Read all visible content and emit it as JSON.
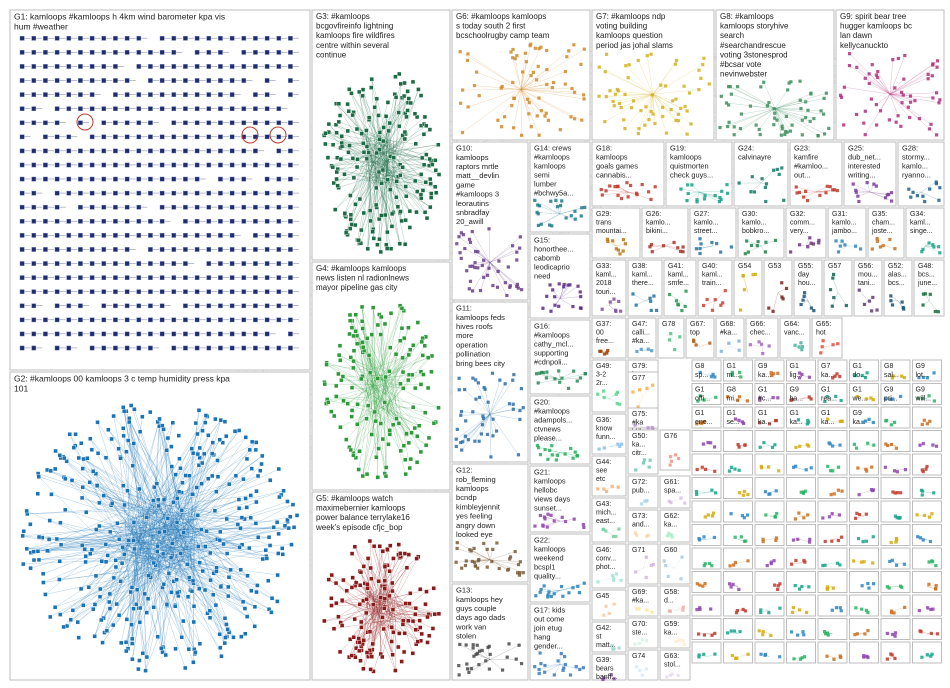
{
  "groups": [
    {
      "id": "G1",
      "lines": [
        "G1: kamloops #kamloops h 4km wind barometer kpa vis",
        "hum #weather"
      ],
      "color": "#1f2d6b",
      "style": "grid"
    },
    {
      "id": "G2",
      "lines": [
        "G2: #kamloops 00 kamloops 3 c temp humidity press kpa",
        "101"
      ],
      "color": "#1a73b5",
      "style": "blob"
    },
    {
      "id": "G3",
      "lines": [
        "G3: #kamloops",
        "bcgovfireinfo lightning",
        "kamloops fire wildfires",
        "centre within several",
        "continue"
      ],
      "color": "#1d6b45",
      "style": "blob"
    },
    {
      "id": "G4",
      "lines": [
        "G4: #kamloops kamloops",
        "news listen nl radionlnews",
        "mayor pipeline gas city"
      ],
      "color": "#2e9b3a",
      "style": "blob"
    },
    {
      "id": "G5",
      "lines": [
        "G5: #kamloops watch",
        "maximebernier kamloops",
        "power balance terrylake16",
        "week's episode cfjc_bop"
      ],
      "color": "#8b1a1a",
      "style": "blob"
    },
    {
      "id": "G6",
      "lines": [
        "G6: #kamloops kamloops",
        "s today south 2 first",
        "bcschoolrugby camp team"
      ],
      "color": "#d08a2a",
      "style": "scatter"
    },
    {
      "id": "G7",
      "lines": [
        "G7: #kamloops ndp",
        "voting building",
        "kamloops question",
        "period jas johal slams"
      ],
      "color": "#d4b21f",
      "style": "scatter"
    },
    {
      "id": "G8",
      "lines": [
        "G8: #kamloops",
        "kamloops storyhive",
        "search",
        "#searchandrescue",
        "voting 3stonesprod",
        "#bcsar vote",
        "nevinwebster"
      ],
      "color": "#3f8f5f",
      "style": "scatter"
    },
    {
      "id": "G9",
      "lines": [
        "G9: spirit bear tree",
        "hugger kamloops bc",
        "lan dawn",
        "kellycanuckto"
      ],
      "color": "#b0307a",
      "style": "scatter"
    },
    {
      "id": "G10",
      "lines": [
        "G10:",
        "kamloops",
        "raptors mrtle",
        "matt__devlin",
        "game",
        "#kamloops 3",
        "leorautins",
        "snbradfay",
        "20_awill"
      ],
      "color": "#6a3d8a",
      "style": "scatter"
    },
    {
      "id": "G11",
      "lines": [
        "G11:",
        "kamloops feds",
        "hives roofs",
        "more",
        "operation",
        "pollination",
        "bring bees city"
      ],
      "color": "#2b6fa8",
      "style": "scatter"
    },
    {
      "id": "G12",
      "lines": [
        "G12:",
        "rob_fleming",
        "kamloops",
        "bcndp",
        "kimbleyjennit",
        "yes feeling",
        "angry down",
        "looked eye"
      ],
      "color": "#7a5a3a",
      "style": "scatter"
    },
    {
      "id": "G13",
      "lines": [
        "G13:",
        "kamloops hey",
        "guys couple",
        "days ago dads",
        "work van",
        "stolen"
      ],
      "color": "#4a4a4a",
      "style": "scatter"
    },
    {
      "id": "G14",
      "lines": [
        "G14: crews",
        "#kamloops",
        "kamloops",
        "semi",
        "lumber",
        "#bchwy5a..."
      ],
      "color": "#1f7a8c",
      "style": "scatter"
    },
    {
      "id": "G15",
      "lines": [
        "G15:",
        "honorthee...",
        "cabomb",
        "leodicaprio",
        "need"
      ],
      "color": "#5b2a86",
      "style": "scatter"
    },
    {
      "id": "G16",
      "lines": [
        "G16:",
        "#kamloops",
        "cathy_mcl...",
        "supporting",
        "#cdnpoli..."
      ],
      "color": "#2a8a5a",
      "style": "scatter"
    },
    {
      "id": "G17",
      "lines": [
        "G17: kids",
        "out come",
        "join etug",
        "hang",
        "gender..."
      ],
      "color": "#3a7ab8",
      "style": "scatter"
    },
    {
      "id": "G18",
      "lines": [
        "G18:",
        "kamloops",
        "goals games",
        "cannabis..."
      ],
      "color": "#c0392b",
      "style": "scatter"
    },
    {
      "id": "G19",
      "lines": [
        "G19:",
        "kamloops",
        "quistmorten",
        "check guys..."
      ],
      "color": "#16a085",
      "style": "scatter"
    },
    {
      "id": "G20",
      "lines": [
        "G20:",
        "#kamloops",
        "adampols...",
        "ctvnews",
        "please..."
      ],
      "color": "#27ae60",
      "style": "scatter"
    },
    {
      "id": "G21",
      "lines": [
        "G21:",
        "kamloops",
        "hellobc",
        "views days",
        "sunset..."
      ],
      "color": "#8e44ad",
      "style": "scatter"
    },
    {
      "id": "G22",
      "lines": [
        "G22:",
        "kamloops",
        "weekend",
        "bcspl1",
        "quality..."
      ],
      "color": "#2980b9",
      "style": "scatter"
    },
    {
      "id": "G23",
      "lines": [
        "G23:",
        "kamfire",
        "#kamloo...",
        "out..."
      ],
      "color": "#c0392b",
      "style": "scatter"
    },
    {
      "id": "G24",
      "lines": [
        "G24:",
        "calvinayre"
      ],
      "color": "#117a65",
      "style": "scatter"
    },
    {
      "id": "G25",
      "lines": [
        "G25:",
        "dub_net...",
        "interested",
        "writing..."
      ],
      "color": "#7d3c98",
      "style": "scatter"
    },
    {
      "id": "G28",
      "lines": [
        "G28:",
        "stormy...",
        "kamlo...",
        "ryanno..."
      ],
      "color": "#1f618d",
      "style": "scatter"
    },
    {
      "id": "G29",
      "lines": [
        "G29:",
        "trans",
        "mountai..."
      ],
      "color": "#b9770e",
      "style": "scatter"
    },
    {
      "id": "G26",
      "lines": [
        "G26:",
        "kamlo...",
        "bikini..."
      ],
      "color": "#a93226",
      "style": "scatter"
    },
    {
      "id": "G27",
      "lines": [
        "G27:",
        "kamlo...",
        "street..."
      ],
      "color": "#2874a6",
      "style": "scatter"
    },
    {
      "id": "G30",
      "lines": [
        "G30:",
        "kamlo...",
        "bobkro..."
      ],
      "color": "#1e8449",
      "style": "scatter"
    },
    {
      "id": "G32",
      "lines": [
        "G32:",
        "comm...",
        "very..."
      ],
      "color": "#6c3483",
      "style": "scatter"
    },
    {
      "id": "G31",
      "lines": [
        "G31:",
        "kamlo...",
        "jambo..."
      ],
      "color": "#2e86c1",
      "style": "scatter"
    },
    {
      "id": "G35",
      "lines": [
        "G35:",
        "cham...",
        "joste..."
      ],
      "color": "#ca6f1e",
      "style": "scatter"
    },
    {
      "id": "G34",
      "lines": [
        "G34:",
        "kaml...",
        "singe..."
      ],
      "color": "#17a589",
      "style": "scatter"
    },
    {
      "id": "G33",
      "lines": [
        "G33:",
        "kaml...",
        "2018",
        "touri..."
      ],
      "color": "#884ea0",
      "style": "scatter"
    },
    {
      "id": "G38",
      "lines": [
        "G38:",
        "kaml...",
        "there..."
      ],
      "color": "#2471a3",
      "style": "scatter"
    },
    {
      "id": "G41",
      "lines": [
        "G41:",
        "kaml...",
        "smfe..."
      ],
      "color": "#229954",
      "style": "scatter"
    },
    {
      "id": "G40",
      "lines": [
        "G40:",
        "kaml...",
        "train..."
      ],
      "color": "#cb4335",
      "style": "scatter"
    },
    {
      "id": "G54",
      "lines": [
        "G54"
      ],
      "color": "#d4ac0d",
      "style": "scatter"
    },
    {
      "id": "G53",
      "lines": [
        "G53"
      ],
      "color": "#7b241c",
      "style": "scatter"
    },
    {
      "id": "G55",
      "lines": [
        "G55:",
        "day",
        "hou..."
      ],
      "color": "#1a5276",
      "style": "scatter"
    },
    {
      "id": "G57",
      "lines": [
        "G57"
      ],
      "color": "#0e6655",
      "style": "scatter"
    },
    {
      "id": "G56",
      "lines": [
        "G56:",
        "mou...",
        "tani..."
      ],
      "color": "#633974",
      "style": "scatter"
    },
    {
      "id": "G52",
      "lines": [
        "G52:",
        "alas...",
        "bcs..."
      ],
      "color": "#1b4f72",
      "style": "scatter"
    },
    {
      "id": "G48",
      "lines": [
        "G48:",
        "bcs...",
        "june..."
      ],
      "color": "#186a3b",
      "style": "scatter"
    },
    {
      "id": "G37",
      "lines": [
        "G37:",
        "00",
        "free..."
      ],
      "color": "#a04000",
      "style": "scatter"
    },
    {
      "id": "G47",
      "lines": [
        "G47:",
        "calli...",
        "#ka..."
      ],
      "color": "#5499c7",
      "style": "scatter"
    },
    {
      "id": "G78",
      "lines": [
        "G78"
      ],
      "color": "#52be80",
      "style": "scatter"
    },
    {
      "id": "G67",
      "lines": [
        "G67:",
        "top"
      ],
      "color": "#af601a",
      "style": "scatter"
    },
    {
      "id": "G68",
      "lines": [
        "G68:",
        "#ka..."
      ],
      "color": "#7fb3d5",
      "style": "scatter"
    },
    {
      "id": "G66",
      "lines": [
        "G66:",
        "chec..."
      ],
      "color": "#a569bd",
      "style": "scatter"
    },
    {
      "id": "G64",
      "lines": [
        "G64:",
        "vanc..."
      ],
      "color": "#45b39d",
      "style": "scatter"
    },
    {
      "id": "G65",
      "lines": [
        "G65:",
        "hot"
      ],
      "color": "#e74c3c",
      "style": "scatter"
    },
    {
      "id": "G79",
      "lines": [
        "G79:",
        "bc..."
      ],
      "color": "#5dade2",
      "style": "scatter"
    },
    {
      "id": "G49",
      "lines": [
        "G49:",
        "3-2",
        "2r..."
      ],
      "color": "#58d68d",
      "style": "scatter"
    },
    {
      "id": "G77",
      "lines": [
        "G77"
      ],
      "color": "#f5b041",
      "style": "scatter"
    },
    {
      "id": "G36",
      "lines": [
        "G36:",
        "know",
        "funn..."
      ],
      "color": "#85c1e9",
      "style": "scatter"
    },
    {
      "id": "G51",
      "lines": [
        "G51:",
        "ene...",
        "mar..."
      ],
      "color": "#82e0aa",
      "style": "scatter"
    },
    {
      "id": "G75",
      "lines": [
        "G75:",
        "#ka"
      ],
      "color": "#bb8fce",
      "style": "scatter"
    },
    {
      "id": "G44",
      "lines": [
        "G44:",
        "see",
        "etc"
      ],
      "color": "#f0b27a",
      "style": "scatter"
    },
    {
      "id": "G50",
      "lines": [
        "G50:",
        "ka...",
        "citr..."
      ],
      "color": "#73c6b6",
      "style": "scatter"
    },
    {
      "id": "G76",
      "lines": [
        "G76"
      ],
      "color": "#f1948a",
      "style": "scatter"
    },
    {
      "id": "G43",
      "lines": [
        "G43:",
        "mich...",
        "east..."
      ],
      "color": "#7dcea0",
      "style": "scatter"
    },
    {
      "id": "G72",
      "lines": [
        "G72:",
        "pub..."
      ],
      "color": "#aed6f1",
      "style": "scatter"
    },
    {
      "id": "G61",
      "lines": [
        "G61:",
        "spa..."
      ],
      "color": "#d7bde2",
      "style": "scatter"
    },
    {
      "id": "G46",
      "lines": [
        "G46:",
        "conv...",
        "phot..."
      ],
      "color": "#a3e4d7",
      "style": "scatter"
    },
    {
      "id": "G73",
      "lines": [
        "G73:",
        "and..."
      ],
      "color": "#fad7a0",
      "style": "scatter"
    },
    {
      "id": "G62",
      "lines": [
        "G62:",
        "ka..."
      ],
      "color": "#abebc6",
      "style": "scatter"
    },
    {
      "id": "G45",
      "lines": [
        "G45"
      ],
      "color": "#f5cba7",
      "style": "scatter"
    },
    {
      "id": "G71",
      "lines": [
        "G71"
      ],
      "color": "#d2b4de",
      "style": "scatter"
    },
    {
      "id": "G60",
      "lines": [
        "G60"
      ],
      "color": "#a9cce3",
      "style": "scatter"
    },
    {
      "id": "G42",
      "lines": [
        "G42:",
        "st",
        "matt..."
      ],
      "color": "#a2d9ce",
      "style": "scatter"
    },
    {
      "id": "G69",
      "lines": [
        "G69:",
        "#ka..."
      ],
      "color": "#f9e79f",
      "style": "scatter"
    },
    {
      "id": "G58",
      "lines": [
        "G58:",
        "d..."
      ],
      "color": "#e6b0aa",
      "style": "scatter"
    },
    {
      "id": "G70",
      "lines": [
        "G70:",
        "ste..."
      ],
      "color": "#d5f5e3",
      "style": "scatter"
    },
    {
      "id": "G59",
      "lines": [
        "G59:",
        "ka..."
      ],
      "color": "#fdebd0",
      "style": "scatter"
    },
    {
      "id": "G39",
      "lines": [
        "G39:",
        "bears",
        "banff..."
      ],
      "color": "#8e44ad",
      "style": "scatter"
    },
    {
      "id": "G74",
      "lines": [
        "G74"
      ],
      "color": "#d6eaf8",
      "style": "scatter"
    },
    {
      "id": "G63",
      "lines": [
        "G63:",
        "stol..."
      ],
      "color": "#e8daef",
      "style": "scatter"
    }
  ],
  "small_labels": [
    "G8",
    "G1",
    "G9",
    "G1",
    "G7",
    "G1",
    "G8",
    "G9",
    "G1",
    "G8",
    "G1",
    "G9",
    "G1",
    "G1",
    "G9",
    "G9",
    "G1",
    "G1",
    "G1",
    "G1",
    "G1",
    "G9"
  ],
  "small_words": [
    "sp...",
    "mi...",
    "ka...",
    "lig...",
    "ka...",
    "do...",
    "sal...",
    "lot...",
    "offi...",
    "mi...",
    "#c...",
    "ha...",
    "rea...",
    "we...",
    "pri...",
    "will...",
    "ene...",
    "se...",
    "ka...",
    "ka...",
    "ka...",
    "ka..."
  ]
}
